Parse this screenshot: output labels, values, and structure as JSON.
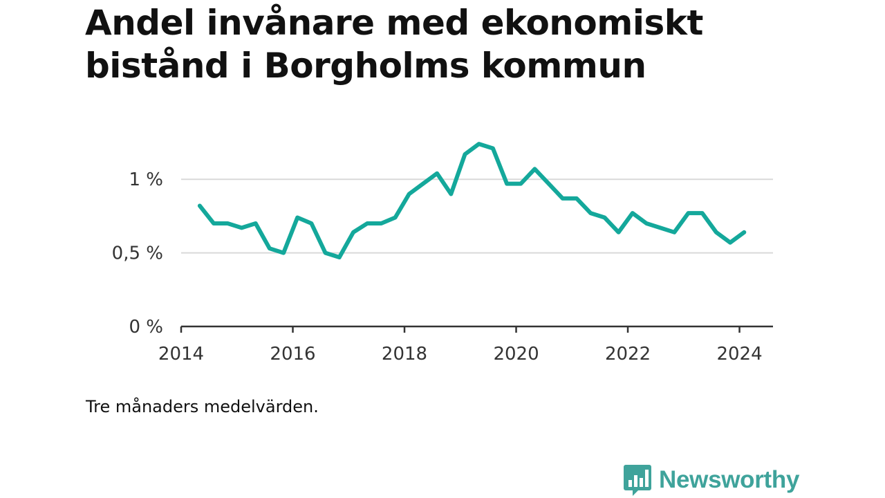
{
  "chart_data": {
    "type": "line",
    "title": "Andel invånare med ekonomiskt bistånd i Borgholms kommun",
    "note": "Tre månaders medelvärden.",
    "x_ticks": [
      "2014",
      "2016",
      "2018",
      "2020",
      "2022",
      "2024"
    ],
    "y_ticks": [
      "0 %",
      "0,5 %",
      "1 %"
    ],
    "xlim": [
      2014,
      2024.6
    ],
    "ylim": [
      0,
      1.25
    ],
    "grid": true,
    "color": "#14a89b",
    "series": [
      {
        "x": [
          "2014-05",
          "2014-08",
          "2014-11",
          "2015-02",
          "2015-05",
          "2015-08",
          "2015-11",
          "2016-02",
          "2016-05",
          "2016-08",
          "2016-11",
          "2017-02",
          "2017-05",
          "2017-08",
          "2017-11",
          "2018-02",
          "2018-05",
          "2018-08",
          "2018-11",
          "2019-02",
          "2019-05",
          "2019-08",
          "2019-11",
          "2020-02",
          "2020-05",
          "2020-08",
          "2020-11",
          "2021-02",
          "2021-05",
          "2021-08",
          "2021-11",
          "2022-02",
          "2022-05",
          "2022-08",
          "2022-11",
          "2023-02",
          "2023-05",
          "2023-08",
          "2023-11",
          "2024-02"
        ],
        "values": [
          0.82,
          0.7,
          0.7,
          0.67,
          0.7,
          0.53,
          0.5,
          0.74,
          0.7,
          0.5,
          0.47,
          0.64,
          0.7,
          0.7,
          0.74,
          0.9,
          0.97,
          1.04,
          0.9,
          1.17,
          1.24,
          1.21,
          0.97,
          0.97,
          1.07,
          0.97,
          0.87,
          0.87,
          0.77,
          0.74,
          0.64,
          0.77,
          0.7,
          0.67,
          0.64,
          0.77,
          0.77,
          0.64,
          0.57,
          0.64
        ]
      }
    ]
  },
  "brand": {
    "name": "Newsworthy",
    "icon": "bar-chart-bubble-icon",
    "color": "#3fa39b"
  }
}
